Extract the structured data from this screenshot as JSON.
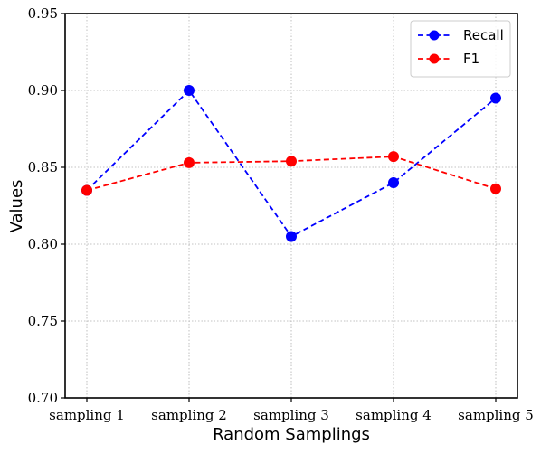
{
  "chart_data": {
    "type": "line",
    "title": "",
    "xlabel": "Random Samplings",
    "ylabel": "Values",
    "categories": [
      "sampling 1",
      "sampling 2",
      "sampling 3",
      "sampling 4",
      "sampling 5"
    ],
    "ylim": [
      0.7,
      0.95
    ],
    "yticks": [
      0.7,
      0.75,
      0.8,
      0.85,
      0.9,
      0.95
    ],
    "ytick_labels": [
      "0.70",
      "0.75",
      "0.80",
      "0.85",
      "0.90",
      "0.95"
    ],
    "grid": true,
    "legend_position": "top-right",
    "series": [
      {
        "name": "Recall",
        "color": "#0000ff",
        "line_style": "dashed",
        "marker": "circle",
        "values": [
          0.835,
          0.9,
          0.805,
          0.84,
          0.895
        ]
      },
      {
        "name": "F1",
        "color": "#ff0000",
        "line_style": "dashed",
        "marker": "circle",
        "values": [
          0.835,
          0.853,
          0.854,
          0.857,
          0.836
        ]
      }
    ]
  }
}
